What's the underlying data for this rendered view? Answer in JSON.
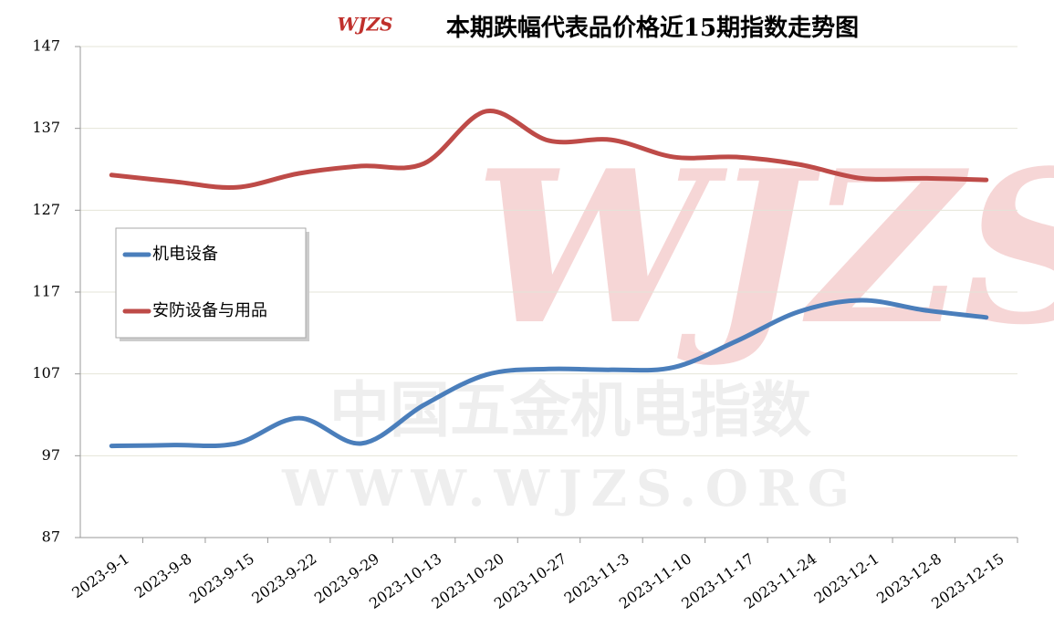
{
  "chart_data": {
    "type": "line",
    "title": "本期跌幅代表品价格近15期指数走势图",
    "logo": "WJZS",
    "watermark": [
      "中国五金机电指数",
      "WWW.WJZS.ORG"
    ],
    "categories": [
      "2023-9-1",
      "2023-9-8",
      "2023-9-15",
      "2023-9-22",
      "2023-9-29",
      "2023-10-13",
      "2023-10-20",
      "2023-10-27",
      "2023-11-3",
      "2023-11-10",
      "2023-11-17",
      "2023-11-24",
      "2023-12-1",
      "2023-12-8",
      "2023-12-15"
    ],
    "series": [
      {
        "name": "机电设备",
        "color": "#4a7ebb",
        "values": [
          98.2,
          98.3,
          98.5,
          101.6,
          98.5,
          103.2,
          106.9,
          107.6,
          107.5,
          107.8,
          111.0,
          114.6,
          116.0,
          114.8,
          113.9
        ]
      },
      {
        "name": "安防设备与用品",
        "color": "#be4b48",
        "values": [
          131.3,
          130.5,
          129.8,
          131.5,
          132.4,
          132.7,
          139.1,
          135.5,
          135.6,
          133.5,
          133.5,
          132.6,
          130.9,
          130.9,
          130.7
        ]
      }
    ],
    "ylim": [
      87,
      147
    ],
    "yticks": [
      87,
      97,
      107,
      117,
      127,
      137,
      147
    ],
    "grid": true,
    "legend": "left"
  }
}
